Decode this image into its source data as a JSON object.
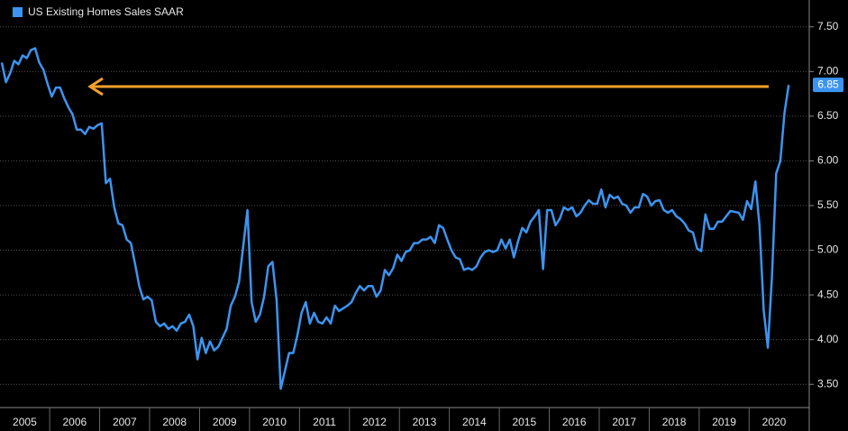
{
  "chart_data": {
    "type": "line",
    "categories": [
      null,
      null,
      null,
      null,
      null,
      null,
      "2005",
      null,
      null,
      null,
      null,
      null,
      null,
      null,
      null,
      null,
      null,
      null,
      "2006",
      null,
      null,
      null,
      null,
      null,
      null,
      null,
      null,
      null,
      null,
      null,
      "2007",
      null,
      null,
      null,
      null,
      null,
      null,
      null,
      null,
      null,
      null,
      null,
      "2008",
      null,
      null,
      null,
      null,
      null,
      null,
      null,
      null,
      null,
      null,
      null,
      "2009",
      null,
      null,
      null,
      null,
      null,
      null,
      null,
      null,
      null,
      null,
      null,
      "2010",
      null,
      null,
      null,
      null,
      null,
      null,
      null,
      null,
      null,
      null,
      null,
      "2011",
      null,
      null,
      null,
      null,
      null,
      null,
      null,
      null,
      null,
      null,
      null,
      "2012",
      null,
      null,
      null,
      null,
      null,
      null,
      null,
      null,
      null,
      null,
      null,
      "2013",
      null,
      null,
      null,
      null,
      null,
      null,
      null,
      null,
      null,
      null,
      null,
      "2014",
      null,
      null,
      null,
      null,
      null,
      null,
      null,
      null,
      null,
      null,
      null,
      "2015",
      null,
      null,
      null,
      null,
      null,
      null,
      null,
      null,
      null,
      null,
      null,
      "2016",
      null,
      null,
      null,
      null,
      null,
      null,
      null,
      null,
      null,
      null,
      null,
      "2017",
      null,
      null,
      null,
      null,
      null,
      null,
      null,
      null,
      null,
      null,
      null,
      "2018",
      null,
      null,
      null,
      null,
      null,
      null,
      null,
      null,
      null,
      null,
      null,
      "2019",
      null,
      null,
      null,
      null,
      null,
      null,
      null,
      null,
      null,
      null,
      null,
      "2020",
      null,
      null,
      null
    ],
    "series": [
      {
        "name": "US Existing Homes Sales SAAR",
        "color": "#3d94f0",
        "values": [
          7.1,
          6.88,
          6.98,
          7.12,
          7.08,
          7.18,
          7.15,
          7.24,
          7.26,
          7.1,
          7.02,
          6.86,
          6.72,
          6.82,
          6.82,
          6.7,
          6.6,
          6.52,
          6.35,
          6.35,
          6.3,
          6.38,
          6.36,
          6.4,
          6.42,
          5.75,
          5.8,
          5.48,
          5.3,
          5.28,
          5.12,
          5.08,
          4.85,
          4.6,
          4.45,
          4.48,
          4.44,
          4.2,
          4.15,
          4.18,
          4.12,
          4.15,
          4.1,
          4.18,
          4.2,
          4.28,
          4.15,
          3.78,
          4.02,
          3.85,
          3.98,
          3.88,
          3.92,
          4.02,
          4.12,
          4.38,
          4.48,
          4.65,
          5.05,
          5.45,
          4.42,
          4.2,
          4.28,
          4.48,
          4.82,
          4.87,
          4.45,
          3.45,
          3.65,
          3.85,
          3.85,
          4.05,
          4.3,
          4.42,
          4.18,
          4.3,
          4.2,
          4.18,
          4.25,
          4.18,
          4.38,
          4.32,
          4.35,
          4.38,
          4.42,
          4.52,
          4.6,
          4.55,
          4.6,
          4.6,
          4.48,
          4.55,
          4.78,
          4.72,
          4.8,
          4.95,
          4.88,
          4.98,
          5.0,
          5.08,
          5.08,
          5.12,
          5.12,
          5.15,
          5.08,
          5.28,
          5.25,
          5.12,
          5.0,
          4.92,
          4.9,
          4.78,
          4.8,
          4.78,
          4.82,
          4.92,
          4.98,
          5.0,
          4.98,
          5.0,
          5.12,
          5.02,
          5.12,
          4.92,
          5.1,
          5.25,
          5.2,
          5.32,
          5.38,
          5.45,
          4.79,
          5.45,
          5.45,
          5.28,
          5.35,
          5.48,
          5.45,
          5.48,
          5.38,
          5.42,
          5.5,
          5.56,
          5.52,
          5.52,
          5.68,
          5.48,
          5.62,
          5.58,
          5.6,
          5.52,
          5.5,
          5.42,
          5.48,
          5.48,
          5.63,
          5.6,
          5.5,
          5.55,
          5.56,
          5.45,
          5.42,
          5.45,
          5.38,
          5.35,
          5.3,
          5.22,
          5.2,
          5.02,
          4.99,
          5.4,
          5.24,
          5.24,
          5.32,
          5.32,
          5.38,
          5.44,
          5.43,
          5.42,
          5.34,
          5.55,
          5.46,
          5.77,
          5.27,
          4.33,
          3.91,
          4.72,
          5.86,
          6.0,
          6.54,
          6.85
        ]
      }
    ],
    "ylim": [
      3.24,
      7.8
    ],
    "yticks": [
      {
        "value": 3.5,
        "label": "3.50"
      },
      {
        "value": 4,
        "label": "4.00"
      },
      {
        "value": 4.5,
        "label": "4.50"
      },
      {
        "value": 5,
        "label": "5.00"
      },
      {
        "value": 5.5,
        "label": "5.50"
      },
      {
        "value": 6,
        "label": "6.00"
      },
      {
        "value": 6.5,
        "label": "6.50"
      },
      {
        "value": 7,
        "label": "7.00"
      },
      {
        "value": 7.5,
        "label": "7.50"
      }
    ],
    "grid": true
  }
}
